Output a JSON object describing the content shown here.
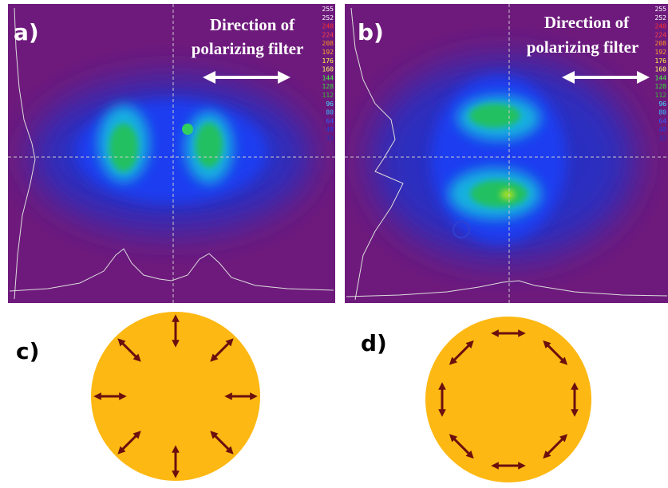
{
  "panels": [
    {
      "label": "a)",
      "caption_lines": [
        "Direction of",
        "polarizing filter"
      ],
      "colorbar": [
        "255",
        "252",
        "240",
        "224",
        "208",
        "192",
        "176",
        "160",
        "144",
        "128",
        "112",
        "96",
        "80",
        "64",
        "48",
        "32"
      ]
    },
    {
      "label": "b)",
      "caption_lines": [
        "Direction of",
        "polarizing filter"
      ],
      "colorbar": [
        "255",
        "252",
        "240",
        "224",
        "208",
        "192",
        "176",
        "160",
        "144",
        "128",
        "112",
        "96",
        "80",
        "64",
        "48",
        "32"
      ]
    },
    {
      "label": "c)"
    },
    {
      "label": "d)"
    }
  ]
}
